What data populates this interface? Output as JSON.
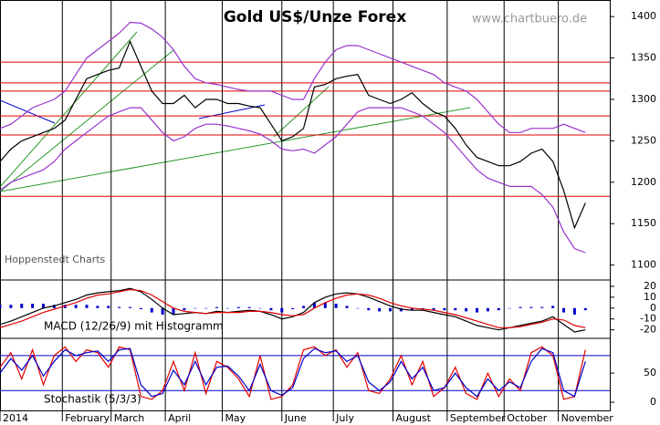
{
  "chart_data": {
    "type": "line",
    "title": "Gold US$/Unze Forex",
    "source": "www.chartbuero.de",
    "credit": "Hoppenstedt Charts",
    "xlim": [
      0,
      225
    ],
    "xticks": [
      {
        "value": 0,
        "label": "2014"
      },
      {
        "value": 23,
        "label": "February"
      },
      {
        "value": 41,
        "label": "March"
      },
      {
        "value": 61,
        "label": "April"
      },
      {
        "value": 82,
        "label": "May"
      },
      {
        "value": 104,
        "label": "June"
      },
      {
        "value": 123,
        "label": "July"
      },
      {
        "value": 145,
        "label": "August"
      },
      {
        "value": 165,
        "label": "September"
      },
      {
        "value": 186,
        "label": "October"
      },
      {
        "value": 206,
        "label": "November"
      }
    ],
    "x": [
      0,
      4,
      8,
      12,
      16,
      20,
      24,
      28,
      32,
      36,
      40,
      44,
      48,
      52,
      56,
      60,
      64,
      68,
      72,
      76,
      80,
      84,
      88,
      92,
      96,
      100,
      104,
      108,
      112,
      116,
      120,
      124,
      128,
      132,
      136,
      140,
      144,
      148,
      152,
      156,
      160,
      164,
      168,
      172,
      176,
      180,
      184,
      188,
      192,
      196,
      200,
      204,
      208,
      212,
      216
    ],
    "ylim": [
      1082,
      1420
    ],
    "yticks": [
      1100,
      1150,
      1200,
      1250,
      1300,
      1350,
      1400
    ],
    "levels": [
      1345,
      1320,
      1310,
      1280,
      1257,
      1183
    ],
    "level_color": "#e00000",
    "series": [
      {
        "color": "#000000",
        "values": [
          1225,
          1240,
          1250,
          1255,
          1260,
          1265,
          1275,
          1300,
          1325,
          1330,
          1335,
          1338,
          1370,
          1340,
          1310,
          1295,
          1295,
          1305,
          1290,
          1300,
          1300,
          1295,
          1295,
          1292,
          1290,
          1270,
          1250,
          1255,
          1265,
          1315,
          1318,
          1325,
          1328,
          1330,
          1305,
          1300,
          1295,
          1300,
          1308,
          1295,
          1285,
          1280,
          1265,
          1245,
          1230,
          1225,
          1220,
          1220,
          1225,
          1235,
          1240,
          1225,
          1190,
          1145,
          1175
        ]
      },
      {
        "color": "#9933cc",
        "values": [
          1265,
          1270,
          1280,
          1290,
          1295,
          1300,
          1310,
          1330,
          1350,
          1360,
          1370,
          1380,
          1393,
          1392,
          1385,
          1375,
          1360,
          1340,
          1325,
          1320,
          1318,
          1315,
          1312,
          1310,
          1310,
          1310,
          1305,
          1300,
          1300,
          1325,
          1345,
          1360,
          1365,
          1365,
          1360,
          1355,
          1350,
          1345,
          1340,
          1335,
          1330,
          1320,
          1315,
          1310,
          1300,
          1285,
          1270,
          1260,
          1260,
          1265,
          1265,
          1265,
          1270,
          1265,
          1260
        ]
      },
      {
        "color": "#9933cc",
        "values": [
          1190,
          1200,
          1205,
          1210,
          1215,
          1225,
          1240,
          1250,
          1260,
          1270,
          1280,
          1285,
          1290,
          1290,
          1275,
          1260,
          1250,
          1255,
          1265,
          1270,
          1270,
          1268,
          1265,
          1262,
          1258,
          1250,
          1240,
          1238,
          1240,
          1235,
          1245,
          1255,
          1270,
          1285,
          1290,
          1290,
          1290,
          1290,
          1285,
          1280,
          1270,
          1260,
          1245,
          1230,
          1215,
          1205,
          1200,
          1195,
          1195,
          1195,
          1185,
          1170,
          1140,
          1120,
          1115
        ]
      }
    ],
    "macd": {
      "label": "MACD (12/26/9) mit Histogramm",
      "ylim": [
        -27,
        25
      ],
      "yticks": [
        20,
        10,
        0,
        -10,
        -20
      ],
      "histogram": {
        "color": "#0000cc",
        "values": [
          3,
          3,
          4,
          4,
          4,
          3,
          3,
          3,
          3,
          2,
          2,
          1,
          1,
          -1,
          -4,
          -6,
          -6,
          -2,
          0,
          0,
          1,
          0,
          1,
          1,
          0,
          -2,
          -4,
          -1,
          2,
          5,
          5,
          4,
          2,
          0,
          -2,
          -3,
          -3,
          -3,
          -2,
          -1,
          -2,
          -2,
          -2,
          -3,
          -4,
          -3,
          -2,
          0,
          1,
          1,
          1,
          2,
          -4,
          -6,
          -2
        ]
      },
      "series": [
        {
          "color": "#000000",
          "values": [
            -15,
            -12,
            -8,
            -4,
            0,
            2,
            5,
            8,
            12,
            14,
            15,
            16,
            18,
            15,
            8,
            0,
            -6,
            -5,
            -4,
            -5,
            -3,
            -4,
            -3,
            -2,
            -3,
            -6,
            -10,
            -8,
            -4,
            5,
            10,
            13,
            14,
            13,
            10,
            6,
            2,
            -1,
            -2,
            -2,
            -4,
            -6,
            -8,
            -12,
            -16,
            -18,
            -20,
            -18,
            -16,
            -14,
            -12,
            -8,
            -15,
            -22,
            -20
          ]
        },
        {
          "color": "#e00000",
          "values": [
            -18,
            -15,
            -12,
            -8,
            -4,
            -1,
            2,
            5,
            9,
            12,
            13,
            15,
            17,
            16,
            12,
            6,
            0,
            -3,
            -4,
            -5,
            -4,
            -4,
            -4,
            -3,
            -3,
            -4,
            -6,
            -7,
            -6,
            0,
            5,
            9,
            12,
            13,
            12,
            9,
            5,
            2,
            0,
            -1,
            -2,
            -4,
            -6,
            -9,
            -12,
            -15,
            -18,
            -18,
            -17,
            -15,
            -13,
            -10,
            -11,
            -16,
            -18
          ]
        }
      ]
    },
    "stochastic": {
      "label": "Stochastik (5/3/3)",
      "ylim": [
        -14,
        108
      ],
      "yticks": [
        0,
        50
      ],
      "levels": [
        80,
        20
      ],
      "level_color": "#0000cc",
      "series": [
        {
          "color": "#e00000",
          "values": [
            60,
            85,
            40,
            90,
            30,
            80,
            95,
            70,
            90,
            85,
            60,
            95,
            90,
            10,
            5,
            20,
            70,
            20,
            85,
            15,
            70,
            60,
            40,
            10,
            80,
            5,
            10,
            30,
            90,
            95,
            80,
            90,
            60,
            85,
            20,
            15,
            40,
            80,
            30,
            70,
            10,
            25,
            60,
            15,
            5,
            50,
            10,
            40,
            20,
            85,
            95,
            80,
            5,
            10,
            90
          ]
        },
        {
          "color": "#0000cc",
          "values": [
            50,
            75,
            55,
            80,
            45,
            70,
            90,
            80,
            85,
            88,
            70,
            90,
            92,
            30,
            10,
            15,
            55,
            30,
            70,
            30,
            60,
            62,
            45,
            20,
            65,
            20,
            12,
            25,
            75,
            92,
            85,
            88,
            70,
            80,
            35,
            20,
            35,
            70,
            40,
            60,
            20,
            25,
            50,
            25,
            10,
            40,
            20,
            35,
            25,
            70,
            92,
            85,
            20,
            10,
            70
          ]
        }
      ]
    }
  }
}
